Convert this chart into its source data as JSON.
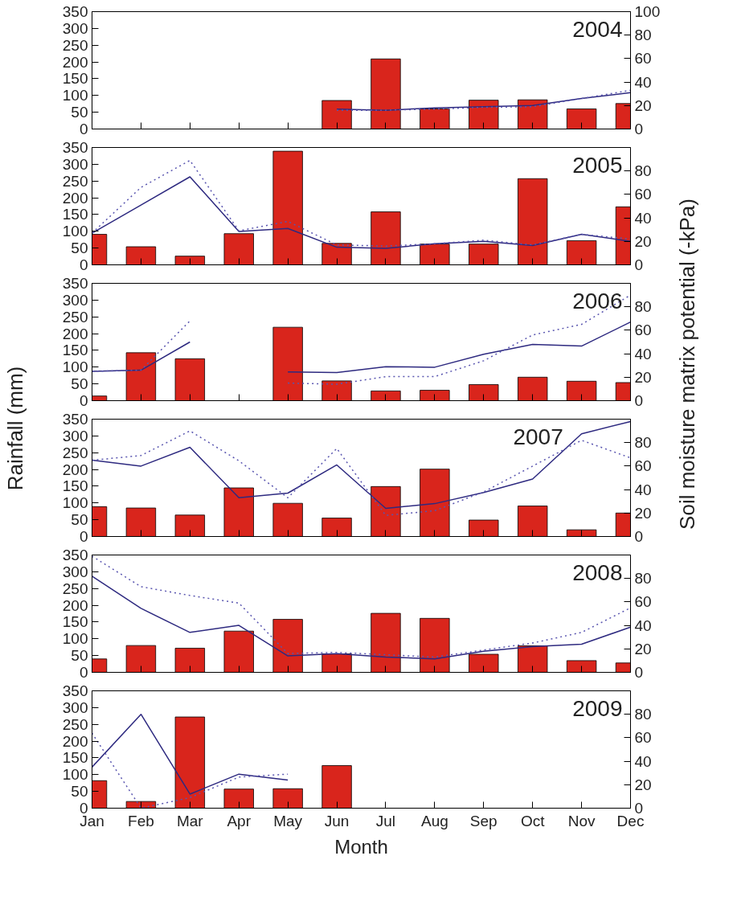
{
  "chart_data": [
    {
      "type": "bar",
      "annotations": [
        "2004"
      ],
      "ylim": [
        0,
        350
      ],
      "yticks": [
        0,
        50,
        100,
        150,
        200,
        250,
        300,
        350
      ],
      "y2lim": [
        0,
        100
      ],
      "y2ticks": [
        0,
        20,
        40,
        60,
        80,
        100
      ],
      "tick_labels": "y",
      "grid": false,
      "series": [
        {
          "color": "#d9251c",
          "values": [
            null,
            null,
            null,
            null,
            null,
            85,
            209,
            60,
            86,
            87,
            60,
            76
          ]
        },
        {
          "type": "line",
          "axis": "y2",
          "line_style": "solid",
          "color": "#2e2a80",
          "values": [
            null,
            null,
            null,
            null,
            null,
            17,
            16,
            18,
            19,
            20,
            26,
            31
          ]
        },
        {
          "type": "line",
          "axis": "y2",
          "line_style": "dotted",
          "color": "#5a56b0",
          "values": [
            null,
            null,
            null,
            null,
            null,
            16,
            16,
            17,
            18.5,
            19,
            26,
            33
          ]
        }
      ]
    },
    {
      "type": "bar",
      "annotations": [
        "2005"
      ],
      "ylim": [
        0,
        350
      ],
      "yticks": [
        0,
        50,
        100,
        150,
        200,
        250,
        300,
        350
      ],
      "y2lim": [
        0,
        100
      ],
      "y2ticks": [
        0,
        20,
        40,
        60,
        80
      ],
      "tick_labels": "y",
      "grid": false,
      "series": [
        {
          "color": "#d9251c",
          "values": [
            91,
            54,
            26,
            93,
            339,
            64,
            158,
            62,
            62,
            257,
            72,
            173
          ]
        },
        {
          "type": "line",
          "axis": "y2",
          "line_style": "solid",
          "color": "#2e2a80",
          "values": [
            27,
            51,
            75,
            28.5,
            31,
            15,
            14,
            18,
            20,
            16.5,
            26,
            20
          ]
        },
        {
          "type": "line",
          "axis": "y2",
          "line_style": "dotted",
          "color": "#5a56b0",
          "values": [
            27,
            66,
            89,
            29,
            37,
            17,
            16,
            18,
            21,
            17,
            26,
            22
          ]
        }
      ]
    },
    {
      "type": "bar",
      "annotations": [
        "2006"
      ],
      "ylim": [
        0,
        350
      ],
      "yticks": [
        0,
        50,
        100,
        150,
        200,
        250,
        300,
        350
      ],
      "y2lim": [
        0,
        100
      ],
      "y2ticks": [
        0,
        20,
        40,
        60,
        80
      ],
      "tick_labels": "y",
      "grid": false,
      "series": [
        {
          "color": "#d9251c",
          "values": [
            14,
            143,
            125,
            null,
            219,
            59,
            29,
            31,
            48,
            70,
            58,
            54
          ]
        },
        {
          "type": "line",
          "axis": "y2",
          "line_style": "solid",
          "color": "#2e2a80",
          "values": [
            25,
            26,
            50,
            null,
            24.5,
            24,
            29,
            28.5,
            39.5,
            48,
            46.5,
            67
          ]
        },
        {
          "type": "line",
          "axis": "y2",
          "line_style": "dotted",
          "color": "#5a56b0",
          "values": [
            25,
            26,
            68,
            null,
            15,
            14,
            20.5,
            20.5,
            34,
            56,
            65,
            90
          ]
        }
      ]
    },
    {
      "type": "bar",
      "annotations": [
        "2007"
      ],
      "ylabel": "Rainfall (mm)",
      "y2label": "Soil moisture matrix potential (-kPa)",
      "ylim": [
        0,
        350
      ],
      "yticks": [
        0,
        50,
        100,
        150,
        200,
        250,
        300,
        350
      ],
      "y2lim": [
        0,
        100
      ],
      "y2ticks": [
        0,
        20,
        40,
        60,
        80
      ],
      "tick_labels": "y",
      "grid": false,
      "series": [
        {
          "color": "#d9251c",
          "values": [
            89,
            85,
            64,
            145,
            99,
            55,
            149,
            201,
            49,
            91,
            20,
            70
          ]
        },
        {
          "type": "line",
          "axis": "y2",
          "line_style": "solid",
          "color": "#2e2a80",
          "values": [
            65,
            60,
            76,
            33,
            37,
            61,
            24,
            28,
            37.5,
            49,
            87.5,
            98
          ]
        },
        {
          "type": "line",
          "axis": "y2",
          "line_style": "dotted",
          "color": "#5a56b0",
          "values": [
            65,
            69,
            90,
            64.5,
            33,
            75,
            18,
            22,
            38,
            60,
            82,
            67
          ]
        }
      ]
    },
    {
      "type": "bar",
      "annotations": [
        "2008"
      ],
      "ylim": [
        0,
        350
      ],
      "yticks": [
        0,
        50,
        100,
        150,
        200,
        250,
        300,
        350
      ],
      "y2lim": [
        0,
        100
      ],
      "y2ticks": [
        0,
        20,
        40,
        60,
        80
      ],
      "tick_labels": "y",
      "grid": false,
      "series": [
        {
          "color": "#d9251c",
          "values": [
            40,
            80,
            72,
            123,
            158,
            55,
            176,
            161,
            54,
            79,
            35,
            28
          ]
        },
        {
          "type": "line",
          "axis": "y2",
          "line_style": "solid",
          "color": "#2e2a80",
          "values": [
            82,
            54.5,
            34,
            40,
            14,
            16,
            13,
            11.5,
            18,
            22,
            24,
            38.5
          ]
        },
        {
          "type": "line",
          "axis": "y2",
          "line_style": "dotted",
          "color": "#5a56b0",
          "values": [
            99,
            73,
            65.5,
            59,
            16,
            17,
            15,
            13,
            19,
            25,
            34,
            55
          ]
        }
      ]
    },
    {
      "type": "bar",
      "annotations": [
        "2009"
      ],
      "xlabel": "Month",
      "categories": [
        "Jan",
        "Feb",
        "Mar",
        "Apr",
        "May",
        "Jun",
        "Jul",
        "Aug",
        "Sep",
        "Oct",
        "Nov",
        "Dec"
      ],
      "ylim": [
        0,
        350
      ],
      "yticks": [
        0,
        50,
        100,
        150,
        200,
        250,
        300,
        350
      ],
      "y2lim": [
        0,
        100
      ],
      "y2ticks": [
        0,
        20,
        40,
        60,
        80
      ],
      "grid": false,
      "series": [
        {
          "color": "#d9251c",
          "values": [
            82,
            20,
            272,
            57,
            58,
            127,
            null,
            null,
            null,
            null,
            null,
            null
          ]
        },
        {
          "type": "line",
          "axis": "y2",
          "line_style": "solid",
          "color": "#2e2a80",
          "values": [
            35,
            80,
            12,
            29,
            24,
            null,
            null,
            null,
            null,
            null,
            null,
            null
          ]
        },
        {
          "type": "line",
          "axis": "y2",
          "line_style": "dotted",
          "color": "#5a56b0",
          "values": [
            64,
            0,
            9,
            26.5,
            29,
            null,
            null,
            null,
            null,
            null,
            null,
            null
          ]
        }
      ]
    }
  ]
}
